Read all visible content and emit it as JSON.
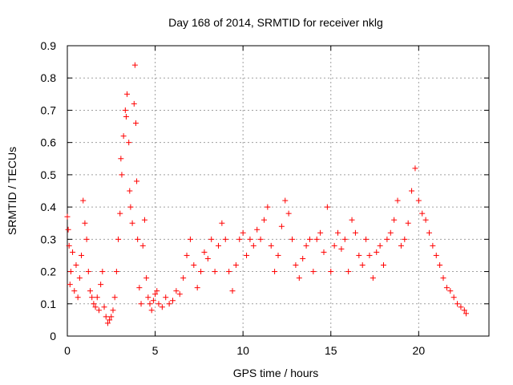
{
  "chart_data": {
    "type": "scatter",
    "title": "Day 168 of 2014, SRMTID for receiver nklg",
    "xlabel": "GPS time / hours",
    "ylabel": "SRMTID / TECUs",
    "xlim": [
      0,
      24
    ],
    "ylim": [
      0,
      0.9
    ],
    "xticks": [
      0,
      5,
      10,
      15,
      20
    ],
    "yticks": [
      0,
      0.1,
      0.2,
      0.3,
      0.4,
      0.5,
      0.6,
      0.7,
      0.8,
      0.9
    ],
    "ytick_labels": [
      "0",
      "0.1",
      "0.2",
      "0.3",
      "0.4",
      "0.5",
      "0.6",
      "0.7",
      "0.8",
      "0.9"
    ],
    "grid": true,
    "marker": "+",
    "color": "#ff0000",
    "series": [
      {
        "name": "SRMTID",
        "x_range": [
          0,
          22.7
        ],
        "points": [
          [
            0.0,
            0.37
          ],
          [
            0.05,
            0.33
          ],
          [
            0.1,
            0.28
          ],
          [
            0.15,
            0.16
          ],
          [
            0.2,
            0.2
          ],
          [
            0.3,
            0.26
          ],
          [
            0.4,
            0.14
          ],
          [
            0.5,
            0.22
          ],
          [
            0.6,
            0.12
          ],
          [
            0.7,
            0.18
          ],
          [
            0.8,
            0.25
          ],
          [
            0.9,
            0.42
          ],
          [
            1.0,
            0.35
          ],
          [
            1.1,
            0.3
          ],
          [
            1.2,
            0.2
          ],
          [
            1.3,
            0.14
          ],
          [
            1.4,
            0.12
          ],
          [
            1.5,
            0.1
          ],
          [
            1.6,
            0.09
          ],
          [
            1.7,
            0.12
          ],
          [
            1.8,
            0.08
          ],
          [
            1.9,
            0.16
          ],
          [
            2.0,
            0.2
          ],
          [
            2.1,
            0.09
          ],
          [
            2.2,
            0.06
          ],
          [
            2.3,
            0.04
          ],
          [
            2.4,
            0.05
          ],
          [
            2.5,
            0.06
          ],
          [
            2.6,
            0.08
          ],
          [
            2.7,
            0.12
          ],
          [
            2.8,
            0.2
          ],
          [
            2.9,
            0.3
          ],
          [
            3.0,
            0.38
          ],
          [
            3.05,
            0.55
          ],
          [
            3.1,
            0.5
          ],
          [
            3.2,
            0.62
          ],
          [
            3.3,
            0.7
          ],
          [
            3.35,
            0.68
          ],
          [
            3.4,
            0.75
          ],
          [
            3.5,
            0.6
          ],
          [
            3.55,
            0.45
          ],
          [
            3.6,
            0.4
          ],
          [
            3.7,
            0.35
          ],
          [
            3.8,
            0.72
          ],
          [
            3.85,
            0.84
          ],
          [
            3.9,
            0.66
          ],
          [
            3.95,
            0.48
          ],
          [
            4.0,
            0.3
          ],
          [
            4.1,
            0.15
          ],
          [
            4.2,
            0.1
          ],
          [
            4.3,
            0.28
          ],
          [
            4.4,
            0.36
          ],
          [
            4.5,
            0.18
          ],
          [
            4.6,
            0.12
          ],
          [
            4.7,
            0.1
          ],
          [
            4.8,
            0.08
          ],
          [
            4.9,
            0.11
          ],
          [
            5.0,
            0.13
          ],
          [
            5.1,
            0.14
          ],
          [
            5.2,
            0.1
          ],
          [
            5.4,
            0.09
          ],
          [
            5.6,
            0.12
          ],
          [
            5.8,
            0.1
          ],
          [
            6.0,
            0.11
          ],
          [
            6.2,
            0.14
          ],
          [
            6.4,
            0.13
          ],
          [
            6.6,
            0.18
          ],
          [
            6.8,
            0.25
          ],
          [
            7.0,
            0.3
          ],
          [
            7.2,
            0.22
          ],
          [
            7.4,
            0.15
          ],
          [
            7.6,
            0.2
          ],
          [
            7.8,
            0.26
          ],
          [
            8.0,
            0.24
          ],
          [
            8.2,
            0.3
          ],
          [
            8.4,
            0.2
          ],
          [
            8.6,
            0.28
          ],
          [
            8.8,
            0.35
          ],
          [
            9.0,
            0.3
          ],
          [
            9.2,
            0.2
          ],
          [
            9.4,
            0.14
          ],
          [
            9.6,
            0.22
          ],
          [
            9.8,
            0.3
          ],
          [
            10.0,
            0.32
          ],
          [
            10.2,
            0.25
          ],
          [
            10.4,
            0.3
          ],
          [
            10.6,
            0.28
          ],
          [
            10.8,
            0.33
          ],
          [
            11.0,
            0.3
          ],
          [
            11.2,
            0.36
          ],
          [
            11.4,
            0.4
          ],
          [
            11.6,
            0.28
          ],
          [
            11.8,
            0.2
          ],
          [
            12.0,
            0.25
          ],
          [
            12.2,
            0.34
          ],
          [
            12.4,
            0.42
          ],
          [
            12.6,
            0.38
          ],
          [
            12.8,
            0.3
          ],
          [
            13.0,
            0.22
          ],
          [
            13.2,
            0.18
          ],
          [
            13.4,
            0.24
          ],
          [
            13.6,
            0.28
          ],
          [
            13.8,
            0.3
          ],
          [
            14.0,
            0.2
          ],
          [
            14.2,
            0.3
          ],
          [
            14.4,
            0.32
          ],
          [
            14.6,
            0.26
          ],
          [
            14.8,
            0.4
          ],
          [
            15.0,
            0.2
          ],
          [
            15.2,
            0.28
          ],
          [
            15.4,
            0.32
          ],
          [
            15.6,
            0.27
          ],
          [
            15.8,
            0.3
          ],
          [
            16.0,
            0.2
          ],
          [
            16.2,
            0.36
          ],
          [
            16.4,
            0.32
          ],
          [
            16.6,
            0.25
          ],
          [
            16.8,
            0.22
          ],
          [
            17.0,
            0.3
          ],
          [
            17.2,
            0.25
          ],
          [
            17.4,
            0.18
          ],
          [
            17.6,
            0.26
          ],
          [
            17.8,
            0.28
          ],
          [
            18.0,
            0.22
          ],
          [
            18.2,
            0.3
          ],
          [
            18.4,
            0.32
          ],
          [
            18.6,
            0.36
          ],
          [
            18.8,
            0.42
          ],
          [
            19.0,
            0.28
          ],
          [
            19.2,
            0.3
          ],
          [
            19.4,
            0.35
          ],
          [
            19.6,
            0.45
          ],
          [
            19.8,
            0.52
          ],
          [
            20.0,
            0.42
          ],
          [
            20.2,
            0.38
          ],
          [
            20.4,
            0.36
          ],
          [
            20.6,
            0.32
          ],
          [
            20.8,
            0.28
          ],
          [
            21.0,
            0.25
          ],
          [
            21.2,
            0.22
          ],
          [
            21.4,
            0.18
          ],
          [
            21.6,
            0.15
          ],
          [
            21.8,
            0.14
          ],
          [
            22.0,
            0.12
          ],
          [
            22.2,
            0.1
          ],
          [
            22.4,
            0.09
          ],
          [
            22.6,
            0.08
          ],
          [
            22.7,
            0.07
          ]
        ]
      }
    ]
  }
}
